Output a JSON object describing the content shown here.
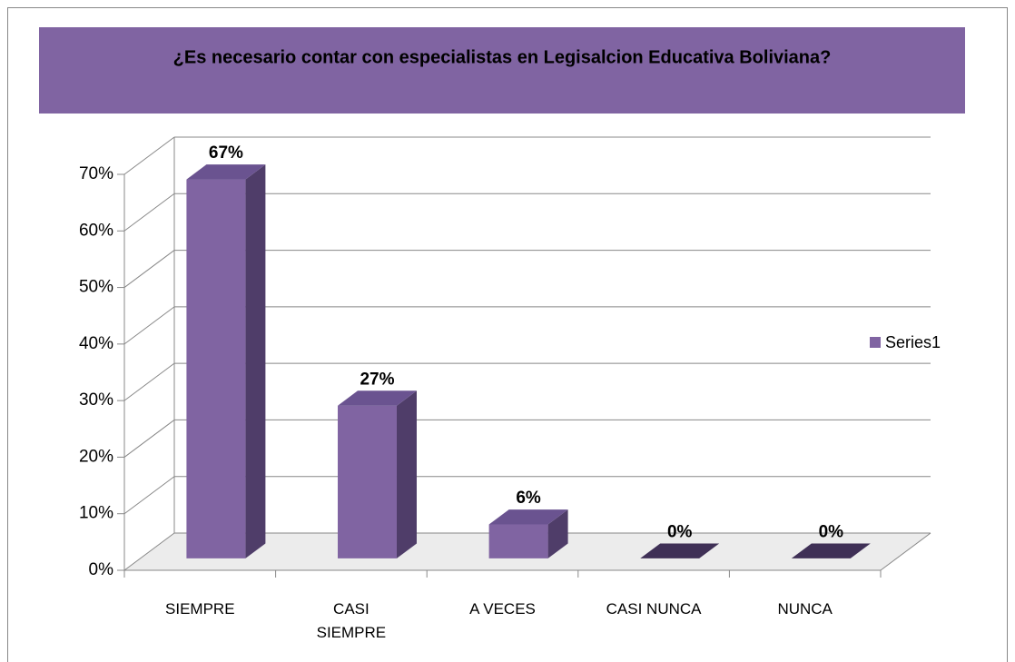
{
  "chart_data": {
    "type": "bar3d",
    "title": "¿Es necesario contar con especialistas en Legisalcion Educativa Boliviana?",
    "categories": [
      "SIEMPRE",
      "CASI SIEMPRE",
      "A VECES",
      "CASI NUNCA",
      "NUNCA"
    ],
    "series": [
      {
        "name": "Series1",
        "color": "#8064a2",
        "values": [
          67,
          27,
          6,
          0,
          0
        ],
        "value_labels": [
          "67%",
          "27%",
          "6%",
          "0%",
          "0%"
        ]
      }
    ],
    "ylim": [
      0,
      70
    ],
    "yticks": [
      {
        "value": 0,
        "label": "0%"
      },
      {
        "value": 10,
        "label": "10%"
      },
      {
        "value": 20,
        "label": "20%"
      },
      {
        "value": 30,
        "label": "30%"
      },
      {
        "value": 40,
        "label": "40%"
      },
      {
        "value": 50,
        "label": "50%"
      },
      {
        "value": 60,
        "label": "60%"
      },
      {
        "value": 70,
        "label": "70%"
      }
    ],
    "grid": true,
    "legend": "right"
  }
}
